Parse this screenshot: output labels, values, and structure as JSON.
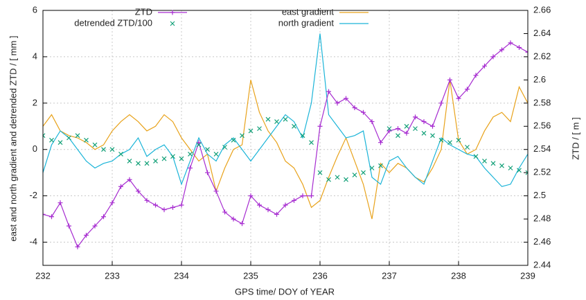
{
  "chart_data": {
    "type": "line",
    "x_label": "GPS time/ DOY of YEAR",
    "y_label": "east and north gradient and detrended ZTD / [ mm ]",
    "y2_label": "ZTD / [ m ]",
    "xlim": [
      232,
      239
    ],
    "xticks": [
      232,
      233,
      234,
      235,
      236,
      237,
      238,
      239
    ],
    "ylim": [
      -5,
      6
    ],
    "yticks": [
      -4,
      -2,
      0,
      2,
      4,
      6
    ],
    "y2lim": [
      2.44,
      2.66
    ],
    "y2ticks": [
      2.44,
      2.46,
      2.48,
      2.5,
      2.52,
      2.54,
      2.56,
      2.58,
      2.6,
      2.62,
      2.64,
      2.66
    ],
    "grid": true,
    "legend": "top",
    "x": [
      232,
      232.125,
      232.25,
      232.375,
      232.5,
      232.625,
      232.75,
      232.875,
      233,
      233.125,
      233.25,
      233.375,
      233.5,
      233.625,
      233.75,
      233.875,
      234,
      234.125,
      234.25,
      234.375,
      234.5,
      234.625,
      234.75,
      234.875,
      235,
      235.125,
      235.25,
      235.375,
      235.5,
      235.625,
      235.75,
      235.875,
      236,
      236.125,
      236.25,
      236.375,
      236.5,
      236.625,
      236.75,
      236.875,
      237,
      237.125,
      237.25,
      237.375,
      237.5,
      237.625,
      237.75,
      237.875,
      238,
      238.125,
      238.25,
      238.375,
      238.5,
      238.625,
      238.75,
      238.875,
      239
    ],
    "series": [
      {
        "name": "ZTD",
        "color": "#a62bd0",
        "axis": "y2",
        "line": true,
        "marker": "plus",
        "values": [
          2.484,
          2.482,
          2.494,
          2.474,
          2.456,
          2.466,
          2.474,
          2.482,
          2.494,
          2.508,
          2.514,
          2.504,
          2.496,
          2.492,
          2.488,
          2.49,
          2.492,
          2.524,
          2.546,
          2.52,
          2.504,
          2.486,
          2.48,
          2.476,
          2.5,
          2.492,
          2.488,
          2.484,
          2.492,
          2.496,
          2.5,
          2.5,
          2.56,
          2.59,
          2.58,
          2.584,
          2.576,
          2.572,
          2.564,
          2.546,
          2.556,
          2.558,
          2.554,
          2.568,
          2.564,
          2.56,
          2.58,
          2.6,
          2.584,
          2.592,
          2.604,
          2.612,
          2.62,
          2.626,
          2.632,
          2.628,
          2.624
        ]
      },
      {
        "name": "detrended ZTD/100",
        "color": "#12a078",
        "line": false,
        "marker": "cross",
        "values": [
          0.6,
          0.4,
          0.3,
          0.5,
          0.6,
          0.4,
          0.2,
          0.0,
          0.0,
          -0.2,
          -0.5,
          -0.6,
          -0.6,
          -0.5,
          -0.4,
          -0.3,
          -0.4,
          -0.2,
          0.2,
          0.0,
          -0.2,
          0.1,
          0.4,
          0.6,
          0.8,
          0.9,
          1.3,
          1.2,
          1.3,
          1.0,
          0.6,
          0.3,
          -1.0,
          -1.3,
          -1.2,
          -1.3,
          -1.1,
          -1.0,
          -0.8,
          -0.7,
          0.9,
          0.6,
          1.0,
          0.9,
          0.7,
          0.6,
          0.4,
          0.3,
          0.4,
          0.1,
          -0.3,
          -0.5,
          -0.6,
          -0.7,
          -0.8,
          -0.9,
          -1.0
        ]
      },
      {
        "name": "east gradient",
        "color": "#e8a21a",
        "line": true,
        "values": [
          1.0,
          1.5,
          0.8,
          0.6,
          0.5,
          0.3,
          0.0,
          0.2,
          0.8,
          1.2,
          1.5,
          1.2,
          0.8,
          1.0,
          1.5,
          1.2,
          0.5,
          0.0,
          -0.5,
          -0.2,
          -1.8,
          -0.8,
          0.0,
          0.2,
          3.0,
          1.6,
          0.8,
          0.3,
          -0.5,
          -0.8,
          -1.5,
          -2.5,
          -2.2,
          -1.2,
          -0.3,
          0.5,
          -0.5,
          -1.5,
          -3.0,
          -0.6,
          -1.0,
          -0.6,
          -0.8,
          -1.2,
          -1.4,
          -0.8,
          0.0,
          3.0,
          0.4,
          -0.2,
          0.0,
          0.8,
          1.4,
          1.6,
          1.2,
          2.7,
          2.0
        ]
      },
      {
        "name": "north gradient",
        "color": "#1ab4d8",
        "line": true,
        "values": [
          -1.0,
          0.2,
          0.8,
          0.5,
          0.0,
          -0.5,
          -0.8,
          -0.6,
          -0.5,
          -0.2,
          0.0,
          0.5,
          -0.3,
          0.0,
          0.2,
          -0.3,
          -1.5,
          -0.5,
          0.5,
          -0.2,
          -0.5,
          0.2,
          0.5,
          0.0,
          -0.5,
          0.0,
          0.5,
          1.0,
          1.5,
          1.2,
          0.5,
          2.0,
          5.0,
          1.5,
          1.0,
          0.5,
          0.6,
          0.8,
          -1.2,
          -1.5,
          -0.5,
          -0.3,
          -0.8,
          -1.2,
          -1.5,
          -0.5,
          0.5,
          0.2,
          0.0,
          -0.2,
          -0.3,
          -0.8,
          -1.2,
          -1.6,
          -1.5,
          -0.8,
          -0.2
        ]
      }
    ]
  }
}
